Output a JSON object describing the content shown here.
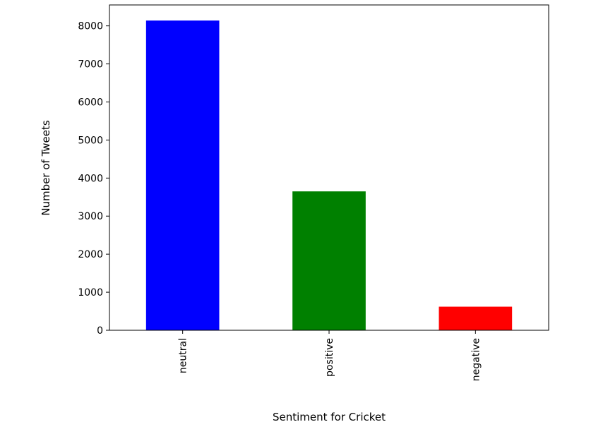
{
  "chart_data": {
    "type": "bar",
    "categories": [
      "neutral",
      "positive",
      "negative"
    ],
    "values": [
      8140,
      3650,
      620
    ],
    "colors": [
      "#0000ff",
      "#008000",
      "#ff0000"
    ],
    "title": "",
    "xlabel": "Sentiment for Cricket",
    "ylabel": "Number of Tweets",
    "ylim": [
      0,
      8550
    ],
    "yticks": [
      0,
      1000,
      2000,
      3000,
      4000,
      5000,
      6000,
      7000,
      8000
    ],
    "ytick_labels": [
      "0",
      "1000",
      "2000",
      "3000",
      "4000",
      "5000",
      "6000",
      "7000",
      "8000"
    ],
    "grid": false,
    "legend": "none"
  }
}
